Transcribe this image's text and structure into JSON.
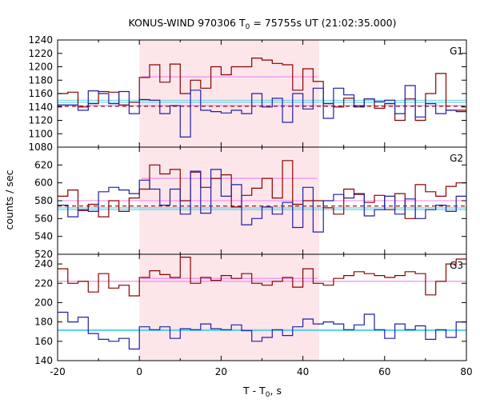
{
  "title_main": "KONUS-WIND 970306 T",
  "title_sub": "0",
  "title_rest": " = 75755s UT (21:02:35.000)",
  "xlabel_main": "T - T",
  "xlabel_sub": "0",
  "xlabel_rest": ", s",
  "ylabel": "counts / sec",
  "colors": {
    "red": "#8b0000",
    "blue": "#1f1fa8",
    "pink": "#ee82ee",
    "cyan": "#5fd0e8",
    "shade": "#fde6ea"
  },
  "chart_data": [
    {
      "type": "line",
      "panel": "G1",
      "label": "G1",
      "xlim": [
        -20,
        80
      ],
      "ylim": [
        1080,
        1240
      ],
      "yticks": [
        1080,
        1100,
        1120,
        1140,
        1160,
        1180,
        1200,
        1220,
        1240
      ],
      "shaded_interval": [
        0,
        44
      ],
      "bin_edges": [
        -20,
        -17.5,
        -15,
        -12.5,
        -10,
        -7.5,
        -5,
        -2.5,
        0,
        2.5,
        5,
        7.5,
        10,
        12.5,
        15,
        17.5,
        20,
        22.5,
        25,
        27.5,
        30,
        32.5,
        35,
        37.5,
        40,
        42.5,
        45,
        47.5,
        50,
        52.5,
        55,
        57.5,
        60,
        62.5,
        65,
        67.5,
        70,
        72.5,
        75,
        77.5,
        80
      ],
      "series": [
        {
          "color": "red",
          "values": [
            1160,
            1162,
            1140,
            1145,
            1163,
            1162,
            1143,
            1147,
            1184,
            1203,
            1177,
            1204,
            1160,
            1180,
            1168,
            1200,
            1188,
            1200,
            1200,
            1213,
            1210,
            1205,
            1203,
            1165,
            1197,
            1178,
            1145,
            1140,
            1153,
            1142,
            1152,
            1138,
            1145,
            1120,
            1152,
            1120,
            1160,
            1190,
            1135,
            1135
          ]
        },
        {
          "color": "blue",
          "values": [
            1143,
            1143,
            1135,
            1164,
            1160,
            1145,
            1163,
            1130,
            1151,
            1150,
            1130,
            1142,
            1095,
            1165,
            1135,
            1133,
            1131,
            1135,
            1130,
            1160,
            1140,
            1153,
            1117,
            1160,
            1137,
            1168,
            1123,
            1168,
            1158,
            1140,
            1152,
            1148,
            1150,
            1130,
            1172,
            1125,
            1145,
            1130,
            1135,
            1133
          ]
        }
      ],
      "fit_lines": [
        {
          "color": "pink",
          "style": "solid",
          "x": [
            -20,
            80
          ],
          "y": 1142
        },
        {
          "color": "pink",
          "style": "solid",
          "x": [
            0.5,
            43.5
          ],
          "y": 1185
        },
        {
          "color": "cyan",
          "style": "solid",
          "x": [
            -20,
            80
          ],
          "y": 1150
        },
        {
          "color": "cyan",
          "style": "solid",
          "x": [
            -20,
            80
          ],
          "y": 1147
        },
        {
          "color": "red",
          "style": "dashed",
          "x": [
            -20,
            80
          ],
          "y": 1141
        }
      ]
    },
    {
      "type": "line",
      "panel": "G2",
      "label": "G2",
      "xlim": [
        -20,
        80
      ],
      "ylim": [
        520,
        640
      ],
      "yticks": [
        520,
        540,
        560,
        580,
        600,
        620
      ],
      "shaded_interval": [
        0,
        44
      ],
      "bin_edges": [
        -20,
        -17.5,
        -15,
        -12.5,
        -10,
        -7.5,
        -5,
        -2.5,
        0,
        2.5,
        5,
        7.5,
        10,
        12.5,
        15,
        17.5,
        20,
        22.5,
        25,
        27.5,
        30,
        32.5,
        35,
        37.5,
        40,
        42.5,
        45,
        47.5,
        50,
        52.5,
        55,
        57.5,
        60,
        62.5,
        65,
        67.5,
        70,
        72.5,
        75,
        77.5,
        80
      ],
      "series": [
        {
          "color": "red",
          "values": [
            585,
            592,
            569,
            576,
            562,
            580,
            568,
            583,
            593,
            620,
            610,
            615,
            580,
            612,
            595,
            605,
            609,
            573,
            586,
            594,
            605,
            583,
            625,
            576,
            580,
            580,
            572,
            565,
            593,
            587,
            578,
            586,
            570,
            588,
            560,
            598,
            590,
            585,
            596,
            600
          ]
        },
        {
          "color": "blue",
          "values": [
            575,
            562,
            570,
            568,
            590,
            595,
            592,
            588,
            603,
            593,
            575,
            593,
            565,
            613,
            566,
            615,
            585,
            598,
            553,
            560,
            573,
            565,
            578,
            550,
            595,
            545,
            580,
            587,
            583,
            588,
            563,
            570,
            585,
            565,
            582,
            560,
            570,
            575,
            568,
            585
          ]
        }
      ],
      "fit_lines": [
        {
          "color": "pink",
          "style": "solid",
          "x": [
            -20,
            80
          ],
          "y": 580
        },
        {
          "color": "pink",
          "style": "solid",
          "x": [
            0.5,
            43.5
          ],
          "y": 605
        },
        {
          "color": "cyan",
          "style": "solid",
          "x": [
            -20,
            80
          ],
          "y": 572
        },
        {
          "color": "cyan",
          "style": "solid",
          "x": [
            -20,
            80
          ],
          "y": 570
        },
        {
          "color": "red",
          "style": "dashed",
          "x": [
            -20,
            80
          ],
          "y": 574
        }
      ]
    },
    {
      "type": "line",
      "panel": "G3",
      "label": "G3",
      "xlim": [
        -20,
        80
      ],
      "ylim": [
        140,
        250
      ],
      "yticks": [
        140,
        160,
        180,
        200,
        220,
        240
      ],
      "shaded_interval": [
        0,
        44
      ],
      "bin_edges": [
        -20,
        -17.5,
        -15,
        -12.5,
        -10,
        -7.5,
        -5,
        -2.5,
        0,
        2.5,
        5,
        7.5,
        10,
        12.5,
        15,
        17.5,
        20,
        22.5,
        25,
        27.5,
        30,
        32.5,
        35,
        37.5,
        40,
        42.5,
        45,
        47.5,
        50,
        52.5,
        55,
        57.5,
        60,
        62.5,
        65,
        67.5,
        70,
        72.5,
        75,
        77.5,
        80
      ],
      "series": [
        {
          "color": "red",
          "values": [
            235,
            220,
            222,
            211,
            230,
            215,
            218,
            207,
            226,
            233,
            229,
            226,
            247,
            220,
            226,
            223,
            228,
            225,
            230,
            220,
            218,
            222,
            226,
            216,
            235,
            220,
            218,
            225,
            228,
            232,
            230,
            228,
            226,
            228,
            232,
            230,
            208,
            222,
            240,
            245
          ]
        },
        {
          "color": "blue",
          "values": [
            190,
            180,
            185,
            168,
            162,
            160,
            163,
            152,
            175,
            172,
            175,
            163,
            173,
            172,
            178,
            173,
            172,
            177,
            171,
            160,
            164,
            172,
            166,
            175,
            183,
            178,
            180,
            178,
            172,
            177,
            188,
            172,
            163,
            178,
            172,
            176,
            162,
            172,
            164,
            180
          ]
        }
      ],
      "fit_lines": [
        {
          "color": "pink",
          "style": "solid",
          "x": [
            -20,
            80
          ],
          "y": 222
        },
        {
          "color": "pink",
          "style": "solid",
          "x": [
            0.5,
            43.5
          ],
          "y": 225
        },
        {
          "color": "cyan",
          "style": "solid",
          "x": [
            -20,
            80
          ],
          "y": 171
        },
        {
          "color": "cyan",
          "style": "solid",
          "x": [
            -20,
            80
          ],
          "y": 172
        }
      ]
    }
  ],
  "xticks": [
    -20,
    0,
    20,
    40,
    60,
    80
  ]
}
